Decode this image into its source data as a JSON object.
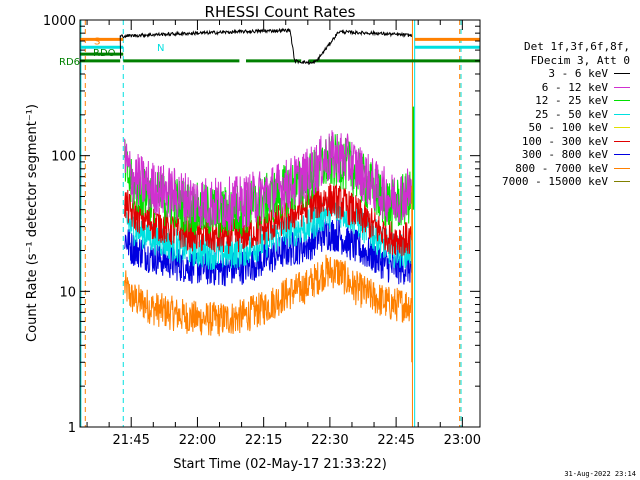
{
  "chart_data": {
    "type": "line",
    "title": "RHESSI Count Rates",
    "xlabel": "Start Time (02-May-17 21:33:22)",
    "ylabel": "Count Rate (s⁻¹ detector segment⁻¹)",
    "y_scale": "log",
    "ylim": [
      1,
      1000
    ],
    "xlim_minutes_of_day": [
      1293.4,
      1384.0
    ],
    "x_ticks": [
      {
        "label": "21:45",
        "minute": 1305
      },
      {
        "label": "22:00",
        "minute": 1320
      },
      {
        "label": "22:15",
        "minute": 1335
      },
      {
        "label": "22:30",
        "minute": 1350
      },
      {
        "label": "22:45",
        "minute": 1365
      },
      {
        "label": "23:00",
        "minute": 1380
      }
    ],
    "y_ticks": [
      {
        "label": "1",
        "value": 1
      },
      {
        "label": "10",
        "value": 10
      },
      {
        "label": "100",
        "value": 100
      },
      {
        "label": "1000",
        "value": 1000
      }
    ],
    "legend_header": [
      "Det 1f,3f,6f,8f,",
      "FDecim 3, Att 0"
    ],
    "series": [
      {
        "name": "3 - 6 keV",
        "color": "#000000",
        "x": [
          1302.5,
          1310,
          1320,
          1330,
          1341,
          1342,
          1346,
          1347,
          1352,
          1355,
          1360,
          1368.5
        ],
        "y": [
          760,
          780,
          800,
          820,
          840,
          500,
          480,
          500,
          820,
          810,
          800,
          770
        ]
      },
      {
        "name": "6 - 12 keV",
        "color": "#d030d0",
        "x": [
          1303.5,
          1305,
          1310,
          1315,
          1320,
          1325,
          1330,
          1335,
          1340,
          1345,
          1349,
          1352,
          1355,
          1360,
          1364,
          1368.5
        ],
        "y": [
          95,
          70,
          58,
          52,
          46,
          44,
          45,
          52,
          60,
          72,
          95,
          100,
          88,
          60,
          48,
          55
        ]
      },
      {
        "name": "12 - 25 keV",
        "color": "#00e000",
        "x": [
          1303.5,
          1305,
          1310,
          1315,
          1320,
          1325,
          1330,
          1335,
          1340,
          1345,
          1349,
          1352,
          1355,
          1360,
          1364,
          1368.5
        ],
        "y": [
          85,
          60,
          50,
          45,
          40,
          38,
          40,
          46,
          55,
          65,
          88,
          92,
          80,
          55,
          42,
          50
        ]
      },
      {
        "name": "25 - 50 keV",
        "color": "#00e0e0",
        "x": [
          1303.5,
          1305,
          1310,
          1315,
          1320,
          1325,
          1330,
          1335,
          1340,
          1345,
          1349,
          1352,
          1355,
          1360,
          1364,
          1368.5
        ],
        "y": [
          35,
          30,
          25,
          22,
          20,
          19,
          20,
          23,
          28,
          30,
          38,
          40,
          36,
          26,
          20,
          20
        ]
      },
      {
        "name": "50 - 100 keV",
        "color": "#e0e000",
        "x": [],
        "y": []
      },
      {
        "name": "100 - 300 keV",
        "color": "#e00000",
        "x": [
          1303.5,
          1305,
          1310,
          1315,
          1320,
          1325,
          1330,
          1335,
          1340,
          1345,
          1349,
          1352,
          1355,
          1360,
          1364,
          1368.5
        ],
        "y": [
          45,
          38,
          32,
          28,
          26,
          25,
          26,
          29,
          35,
          42,
          48,
          46,
          40,
          30,
          25,
          24
        ]
      },
      {
        "name": "300 - 800 keV",
        "color": "#0000e0",
        "x": [
          1303.5,
          1305,
          1310,
          1315,
          1320,
          1325,
          1330,
          1335,
          1340,
          1345,
          1349,
          1352,
          1355,
          1360,
          1364,
          1368.5
        ],
        "y": [
          25,
          21,
          18,
          16,
          15,
          14.5,
          15,
          17,
          20,
          22,
          27,
          26,
          22,
          18,
          15,
          15
        ]
      },
      {
        "name": "800 - 7000 keV",
        "color": "#ff8000",
        "x": [
          1303.5,
          1305,
          1310,
          1315,
          1320,
          1325,
          1330,
          1335,
          1340,
          1345,
          1349,
          1352,
          1355,
          1360,
          1364,
          1368.5
        ],
        "y": [
          11,
          9,
          7.5,
          6.8,
          6.3,
          6.2,
          6.5,
          7.5,
          9.5,
          11,
          14,
          14,
          11,
          9,
          8,
          8
        ]
      },
      {
        "name": "7000 - 15000 keV",
        "color": "#808000",
        "x": [],
        "y": []
      }
    ],
    "flag_bars": [
      {
        "label": "S",
        "color": "#ff8000",
        "segments": [
          [
            1293.4,
            1303.2
          ],
          [
            1369.2,
            1384.0
          ]
        ]
      },
      {
        "label": "N",
        "color": "#00e0e0",
        "segments": [
          [
            1293.4,
            1303.2
          ],
          [
            1369.2,
            1384.0
          ]
        ]
      },
      {
        "label": "RDO",
        "color": "#008000",
        "segments": [
          [
            1293.4,
            1303.2
          ]
        ]
      },
      {
        "label": "RD6",
        "color": "#008000",
        "segments": [
          [
            1293.4,
            1302.5
          ],
          [
            1303.2,
            1329.5
          ],
          [
            1331.0,
            1343.5
          ],
          [
            1345.2,
            1384.0
          ]
        ]
      }
    ],
    "vertical_lines": [
      {
        "minute": 1293.6,
        "color": "#00e0e0",
        "style": "solid"
      },
      {
        "minute": 1294.6,
        "color": "#ff8000",
        "style": "dashed"
      },
      {
        "minute": 1303.2,
        "color": "#00e0e0",
        "style": "dashed"
      },
      {
        "minute": 1368.7,
        "color": "#ff8000",
        "style": "solid"
      },
      {
        "minute": 1369.2,
        "color": "#00e0e0",
        "style": "solid"
      },
      {
        "minute": 1379.4,
        "color": "#ff8000",
        "style": "dashed"
      },
      {
        "minute": 1379.7,
        "color": "#00e0e0",
        "style": "dashed"
      }
    ],
    "grid": false,
    "legend_position": "right"
  },
  "timestamp": "31-Aug-2022 23:14"
}
